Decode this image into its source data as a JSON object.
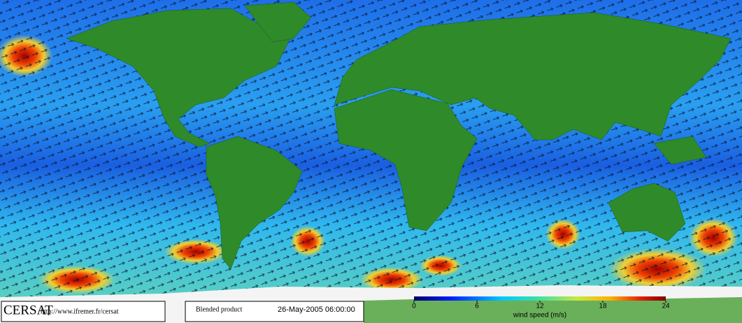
{
  "logo": "CERSAT",
  "url": "http://www.ifremer.fr/cersat",
  "product": "Blended product",
  "date": "26-May-2005 06:00:00",
  "colorbar": {
    "label": "wind speed (m/s)",
    "range": [
      0,
      24
    ],
    "ticks": [
      0,
      6,
      12,
      18,
      24
    ]
  }
}
